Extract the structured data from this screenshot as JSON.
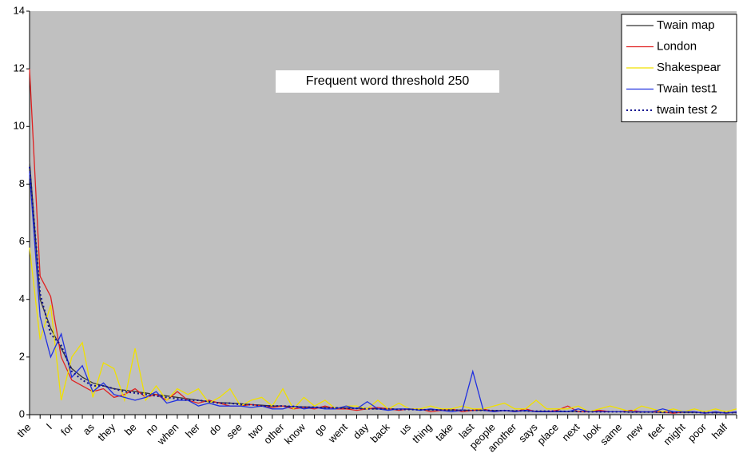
{
  "chart_data": {
    "type": "line",
    "annotation": "Frequent word threshold 250",
    "categories": [
      "the",
      null,
      "I",
      null,
      "for",
      null,
      "as",
      null,
      "they",
      null,
      "be",
      null,
      "no",
      null,
      "when",
      null,
      "her",
      null,
      "do",
      null,
      "see",
      null,
      "two",
      null,
      "other",
      null,
      "know",
      null,
      "go",
      null,
      "went",
      null,
      "day",
      null,
      "back",
      null,
      "us",
      null,
      "thing",
      null,
      "take",
      null,
      "last",
      null,
      "people",
      null,
      "another",
      null,
      "says",
      null,
      "place",
      null,
      "next",
      null,
      "look",
      null,
      "same",
      null,
      "new",
      null,
      "feet",
      null,
      "might",
      null,
      "poor",
      null,
      "half",
      null
    ],
    "series": [
      {
        "name": "Twain map",
        "color": "#333333",
        "style": "solid",
        "values": [
          8.8,
          4.0,
          3.0,
          2.3,
          1.6,
          1.3,
          1.1,
          1.0,
          0.9,
          0.85,
          0.8,
          0.75,
          0.7,
          0.65,
          0.6,
          0.55,
          0.5,
          0.45,
          0.42,
          0.4,
          0.38,
          0.35,
          0.33,
          0.3,
          0.3,
          0.28,
          0.27,
          0.26,
          0.25,
          0.24,
          0.23,
          0.22,
          0.21,
          0.2,
          0.2,
          0.19,
          0.18,
          0.18,
          0.17,
          0.17,
          0.16,
          0.16,
          0.15,
          0.15,
          0.14,
          0.14,
          0.13,
          0.13,
          0.12,
          0.12,
          0.12,
          0.11,
          0.11,
          0.1,
          0.1,
          0.1,
          0.1,
          0.09,
          0.09,
          0.09,
          0.08,
          0.08,
          0.08,
          0.08,
          0.07,
          0.07,
          0.07,
          0.07
        ]
      },
      {
        "name": "London",
        "color": "#e02020",
        "style": "solid",
        "values": [
          12.0,
          4.8,
          4.1,
          2.0,
          1.2,
          1.0,
          0.8,
          0.9,
          0.6,
          0.7,
          0.9,
          0.6,
          0.7,
          0.5,
          0.8,
          0.5,
          0.4,
          0.5,
          0.4,
          0.3,
          0.3,
          0.35,
          0.3,
          0.25,
          0.3,
          0.2,
          0.25,
          0.2,
          0.3,
          0.2,
          0.2,
          0.15,
          0.2,
          0.25,
          0.2,
          0.15,
          0.2,
          0.2,
          0.1,
          0.15,
          0.2,
          0.1,
          0.15,
          0.2,
          0.1,
          0.15,
          0.1,
          0.2,
          0.1,
          0.1,
          0.15,
          0.3,
          0.1,
          0.1,
          0.15,
          0.1,
          0.1,
          0.15,
          0.1,
          0.1,
          0.1,
          0.05,
          0.1,
          0.1,
          0.05,
          0.1,
          0.05,
          0.1
        ]
      },
      {
        "name": "Shakespear",
        "color": "#f0e000",
        "style": "solid",
        "values": [
          5.8,
          2.6,
          3.8,
          0.5,
          2.0,
          2.5,
          0.6,
          1.8,
          1.6,
          0.5,
          2.3,
          0.5,
          1.0,
          0.5,
          0.9,
          0.7,
          0.9,
          0.4,
          0.6,
          0.9,
          0.3,
          0.5,
          0.6,
          0.3,
          0.9,
          0.2,
          0.6,
          0.3,
          0.5,
          0.2,
          0.3,
          0.3,
          0.2,
          0.5,
          0.2,
          0.4,
          0.2,
          0.2,
          0.3,
          0.2,
          0.2,
          0.3,
          0.2,
          0.2,
          0.3,
          0.4,
          0.2,
          0.2,
          0.5,
          0.2,
          0.2,
          0.2,
          0.3,
          0.1,
          0.2,
          0.3,
          0.2,
          0.1,
          0.3,
          0.2,
          0.1,
          0.2,
          0.1,
          0.2,
          0.1,
          0.2,
          0.1,
          0.2
        ]
      },
      {
        "name": "Twain test1",
        "color": "#2030e0",
        "style": "solid",
        "values": [
          8.4,
          3.4,
          2.0,
          2.8,
          1.3,
          1.7,
          0.8,
          1.1,
          0.7,
          0.6,
          0.5,
          0.6,
          0.8,
          0.4,
          0.5,
          0.5,
          0.3,
          0.4,
          0.3,
          0.3,
          0.3,
          0.25,
          0.3,
          0.2,
          0.2,
          0.3,
          0.2,
          0.25,
          0.2,
          0.2,
          0.3,
          0.2,
          0.45,
          0.2,
          0.15,
          0.2,
          0.2,
          0.15,
          0.2,
          0.15,
          0.1,
          0.15,
          1.5,
          0.15,
          0.1,
          0.15,
          0.1,
          0.15,
          0.1,
          0.1,
          0.1,
          0.1,
          0.2,
          0.1,
          0.1,
          0.1,
          0.1,
          0.1,
          0.1,
          0.1,
          0.2,
          0.1,
          0.1,
          0.1,
          0.05,
          0.1,
          0.05,
          0.1
        ]
      },
      {
        "name": "twain test 2",
        "color": "#101090",
        "style": "dotted",
        "values": [
          8.6,
          4.2,
          2.8,
          2.4,
          1.5,
          1.2,
          1.0,
          1.0,
          0.9,
          0.8,
          0.75,
          0.7,
          0.65,
          0.6,
          0.55,
          0.5,
          0.5,
          0.45,
          0.4,
          0.4,
          0.35,
          0.35,
          0.3,
          0.3,
          0.3,
          0.28,
          0.26,
          0.26,
          0.24,
          0.24,
          0.22,
          0.22,
          0.2,
          0.2,
          0.2,
          0.18,
          0.18,
          0.17,
          0.17,
          0.16,
          0.16,
          0.15,
          0.15,
          0.15,
          0.14,
          0.14,
          0.13,
          0.13,
          0.12,
          0.12,
          0.12,
          0.11,
          0.11,
          0.1,
          0.1,
          0.1,
          0.1,
          0.09,
          0.09,
          0.09,
          0.08,
          0.08,
          0.08,
          0.08,
          0.07,
          0.07,
          0.07,
          0.07
        ]
      }
    ],
    "ylim": [
      0,
      14
    ],
    "yticks": [
      0,
      2,
      4,
      6,
      8,
      10,
      12,
      14
    ],
    "grid": false,
    "legend": "top-right",
    "background": "#c0c0c0"
  }
}
